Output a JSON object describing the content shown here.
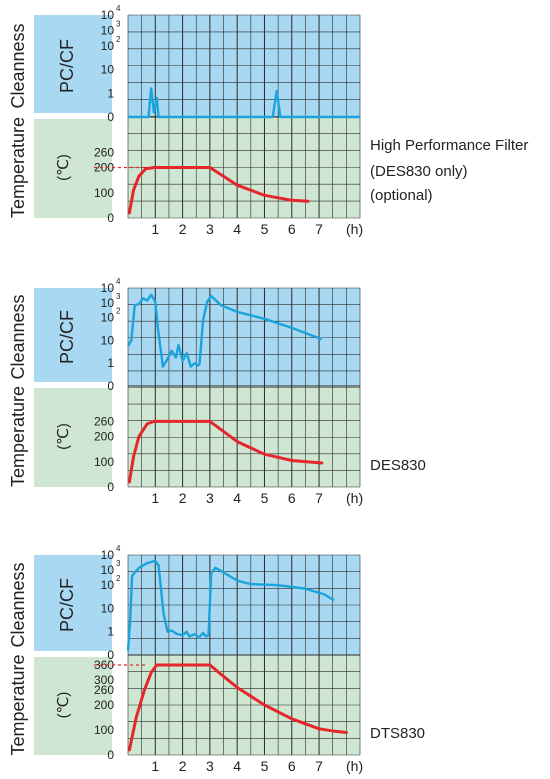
{
  "colors": {
    "cleanness_bg": "#a9d8f2",
    "temperature_bg": "#cfe6d2",
    "cleanness_line": "#1aa3dc",
    "temperature_line": "#e5262b",
    "grid": "#2b2b2b"
  },
  "chart_data": [
    {
      "type": "line",
      "name": "DES830 with High Performance Filter",
      "side_labels": {
        "cleanness": "Cleanness",
        "cleanness_box": "PC/CF",
        "temperature": "Temperature",
        "temperature_box": "(℃)"
      },
      "note_lines": [
        "High Performance Filter",
        "(DES830 only)",
        "(optional)"
      ],
      "x_ticks": [
        "1",
        "2",
        "3",
        "4",
        "5",
        "6",
        "7"
      ],
      "x_unit": "(h)",
      "x_range": [
        0,
        8.5
      ],
      "cleanness_scale": "log",
      "cleanness_ticks": [
        {
          "label": "0",
          "exp": ""
        },
        {
          "label": "1",
          "exp": ""
        },
        {
          "label": "10",
          "exp": ""
        },
        {
          "label": "10",
          "exp": "2"
        },
        {
          "label": "10",
          "exp": "3"
        },
        {
          "label": "10",
          "exp": "4"
        }
      ],
      "temperature_ticks": [
        "0",
        "100",
        "200",
        "260"
      ],
      "temperature_range": [
        0,
        400
      ],
      "setpoint_dashed": 200,
      "cleanness_series": [
        [
          0,
          0
        ],
        [
          0.75,
          0
        ],
        [
          0.85,
          1.2
        ],
        [
          0.95,
          0.2
        ],
        [
          1.05,
          0.8
        ],
        [
          1.12,
          0
        ],
        [
          5.3,
          0
        ],
        [
          5.45,
          1.1
        ],
        [
          5.58,
          0
        ],
        [
          8.5,
          0
        ]
      ],
      "temperature_series": [
        [
          0.05,
          20
        ],
        [
          0.2,
          110
        ],
        [
          0.4,
          165
        ],
        [
          0.65,
          195
        ],
        [
          0.95,
          200
        ],
        [
          3.0,
          200
        ],
        [
          3.5,
          165
        ],
        [
          4.0,
          130
        ],
        [
          5.0,
          90
        ],
        [
          6.0,
          70
        ],
        [
          6.6,
          66
        ]
      ]
    },
    {
      "type": "line",
      "name": "DES830",
      "side_labels": {
        "cleanness": "Cleanness",
        "cleanness_box": "PC/CF",
        "temperature": "Temperature",
        "temperature_box": "(℃)"
      },
      "note_lines": [
        "DES830"
      ],
      "x_ticks": [
        "1",
        "2",
        "3",
        "4",
        "5",
        "6",
        "7"
      ],
      "x_unit": "(h)",
      "x_range": [
        0,
        8.5
      ],
      "cleanness_scale": "log",
      "cleanness_ticks": [
        {
          "label": "0",
          "exp": ""
        },
        {
          "label": "1",
          "exp": ""
        },
        {
          "label": "10",
          "exp": ""
        },
        {
          "label": "10",
          "exp": "2"
        },
        {
          "label": "10",
          "exp": "3"
        },
        {
          "label": "10",
          "exp": "4"
        }
      ],
      "temperature_ticks": [
        "0",
        "100",
        "200",
        "260"
      ],
      "temperature_range": [
        0,
        400
      ],
      "setpoint_dashed": null,
      "cleanness_series": [
        [
          0.0,
          1.75
        ],
        [
          0.12,
          2.0
        ],
        [
          0.25,
          3.55
        ],
        [
          0.4,
          3.6
        ],
        [
          0.55,
          3.85
        ],
        [
          0.7,
          3.75
        ],
        [
          0.85,
          4.0
        ],
        [
          1.0,
          3.7
        ],
        [
          1.1,
          2.5
        ],
        [
          1.28,
          0.85
        ],
        [
          1.45,
          1.2
        ],
        [
          1.6,
          1.55
        ],
        [
          1.75,
          1.25
        ],
        [
          1.85,
          1.8
        ],
        [
          2.0,
          1.1
        ],
        [
          2.15,
          1.45
        ],
        [
          2.3,
          0.85
        ],
        [
          2.45,
          1.0
        ],
        [
          2.55,
          0.9
        ],
        [
          2.62,
          0.95
        ],
        [
          2.75,
          2.9
        ],
        [
          2.9,
          3.7
        ],
        [
          3.05,
          3.95
        ],
        [
          3.4,
          3.55
        ],
        [
          4.0,
          3.25
        ],
        [
          5.0,
          2.95
        ],
        [
          6.0,
          2.55
        ],
        [
          7.1,
          2.05
        ]
      ],
      "temperature_series": [
        [
          0.05,
          20
        ],
        [
          0.2,
          120
        ],
        [
          0.4,
          200
        ],
        [
          0.7,
          250
        ],
        [
          0.95,
          260
        ],
        [
          3.0,
          260
        ],
        [
          3.5,
          220
        ],
        [
          4.0,
          180
        ],
        [
          5.0,
          130
        ],
        [
          6.0,
          105
        ],
        [
          7.1,
          95
        ]
      ]
    },
    {
      "type": "line",
      "name": "DTS830",
      "side_labels": {
        "cleanness": "Cleanness",
        "cleanness_box": "PC/CF",
        "temperature": "Temperature",
        "temperature_box": "(℃)"
      },
      "note_lines": [
        "DTS830"
      ],
      "x_ticks": [
        "1",
        "2",
        "3",
        "4",
        "5",
        "6",
        "7"
      ],
      "x_unit": "(h)",
      "x_range": [
        0,
        8.5
      ],
      "cleanness_scale": "log",
      "cleanness_ticks": [
        {
          "label": "0",
          "exp": ""
        },
        {
          "label": "1",
          "exp": ""
        },
        {
          "label": "10",
          "exp": ""
        },
        {
          "label": "10",
          "exp": "2"
        },
        {
          "label": "10",
          "exp": "3"
        },
        {
          "label": "10",
          "exp": "4"
        }
      ],
      "temperature_ticks": [
        "0",
        "100",
        "200",
        "260",
        "300",
        "360"
      ],
      "temperature_range": [
        0,
        400
      ],
      "setpoint_dashed": 360,
      "cleanness_series": [
        [
          0.0,
          0.2
        ],
        [
          0.08,
          1.5
        ],
        [
          0.15,
          3.4
        ],
        [
          0.4,
          3.75
        ],
        [
          0.7,
          3.95
        ],
        [
          1.0,
          4.05
        ],
        [
          1.12,
          3.85
        ],
        [
          1.3,
          1.8
        ],
        [
          1.45,
          1.0
        ],
        [
          1.6,
          1.05
        ],
        [
          1.8,
          0.9
        ],
        [
          2.0,
          0.85
        ],
        [
          2.15,
          1.0
        ],
        [
          2.25,
          0.8
        ],
        [
          2.45,
          0.9
        ],
        [
          2.6,
          0.75
        ],
        [
          2.75,
          0.95
        ],
        [
          2.85,
          0.8
        ],
        [
          2.95,
          0.85
        ],
        [
          3.05,
          3.5
        ],
        [
          3.2,
          3.75
        ],
        [
          3.5,
          3.55
        ],
        [
          4.0,
          3.2
        ],
        [
          4.5,
          3.05
        ],
        [
          5.5,
          3.0
        ],
        [
          6.5,
          2.85
        ],
        [
          7.2,
          2.6
        ],
        [
          7.55,
          2.35
        ]
      ],
      "temperature_series": [
        [
          0.05,
          20
        ],
        [
          0.3,
          150
        ],
        [
          0.6,
          260
        ],
        [
          0.85,
          330
        ],
        [
          1.05,
          360
        ],
        [
          3.0,
          360
        ],
        [
          3.5,
          315
        ],
        [
          4.0,
          270
        ],
        [
          5.0,
          200
        ],
        [
          6.0,
          145
        ],
        [
          7.0,
          105
        ],
        [
          7.6,
          95
        ],
        [
          8.0,
          90
        ]
      ]
    }
  ]
}
